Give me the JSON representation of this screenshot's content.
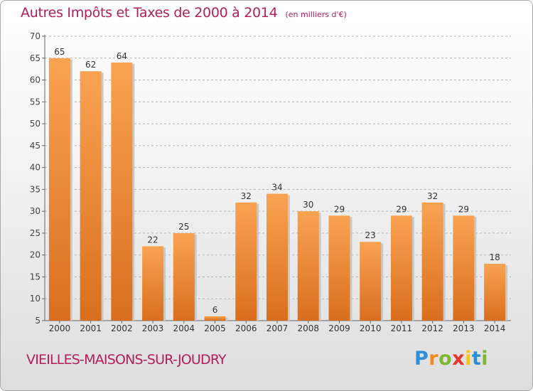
{
  "chart_data": {
    "type": "bar",
    "title": "Autres Impôts et Taxes de 2000 à 2014",
    "subtitle": "(en milliers d'€)",
    "xlabel": "",
    "ylabel": "",
    "categories": [
      "2000",
      "2001",
      "2002",
      "2003",
      "2004",
      "2005",
      "2006",
      "2007",
      "2008",
      "2009",
      "2010",
      "2011",
      "2012",
      "2013",
      "2014"
    ],
    "values": [
      65,
      62,
      64,
      22,
      25,
      6,
      32,
      34,
      30,
      29,
      23,
      29,
      32,
      29,
      18
    ],
    "data_labels": [
      "65",
      "62",
      "64",
      "22",
      "25",
      "6",
      "32",
      "34",
      "30",
      "29",
      "23",
      "29",
      "32",
      "29",
      "18"
    ],
    "yticks": [
      "5",
      "10",
      "15",
      "20",
      "25",
      "30",
      "35",
      "40",
      "45",
      "50",
      "55",
      "60",
      "65",
      "70"
    ],
    "ylim": [
      5,
      70
    ],
    "grid": "horizontal-dashed",
    "legend": "none",
    "colors": {
      "bar_top": "#f9a352",
      "bar_bottom": "#d96f1e",
      "bar_shadow": "#c9c9c9",
      "title": "#b41e5a"
    }
  },
  "footer": {
    "city": "VIEILLES-MAISONS-SUR-JOUDRY"
  },
  "brand": {
    "letters": [
      "P",
      "r",
      "o",
      "x",
      "i",
      "t",
      "i"
    ],
    "colors": [
      "#2e8fd6",
      "#f08a1c",
      "#7cb82f",
      "#e8342a",
      "#f4c419",
      "#2e8fd6",
      "#7cb82f"
    ]
  }
}
